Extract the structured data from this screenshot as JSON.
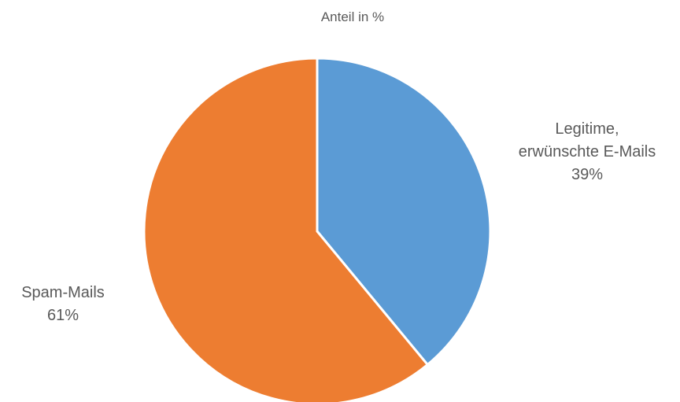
{
  "chart_data": {
    "type": "pie",
    "title": "Anteil in %",
    "slices": [
      {
        "label_lines": [
          "Legitime,",
          "erwünschte E-Mails"
        ],
        "value": 39,
        "percent_label": "39%",
        "color": "#5B9BD5"
      },
      {
        "label_lines": [
          "Spam-Mails"
        ],
        "value": 61,
        "percent_label": "61%",
        "color": "#ED7D31"
      }
    ],
    "start_angle_deg": 0,
    "direction": "clockwise",
    "legend": "none",
    "data_labels": "outside"
  }
}
